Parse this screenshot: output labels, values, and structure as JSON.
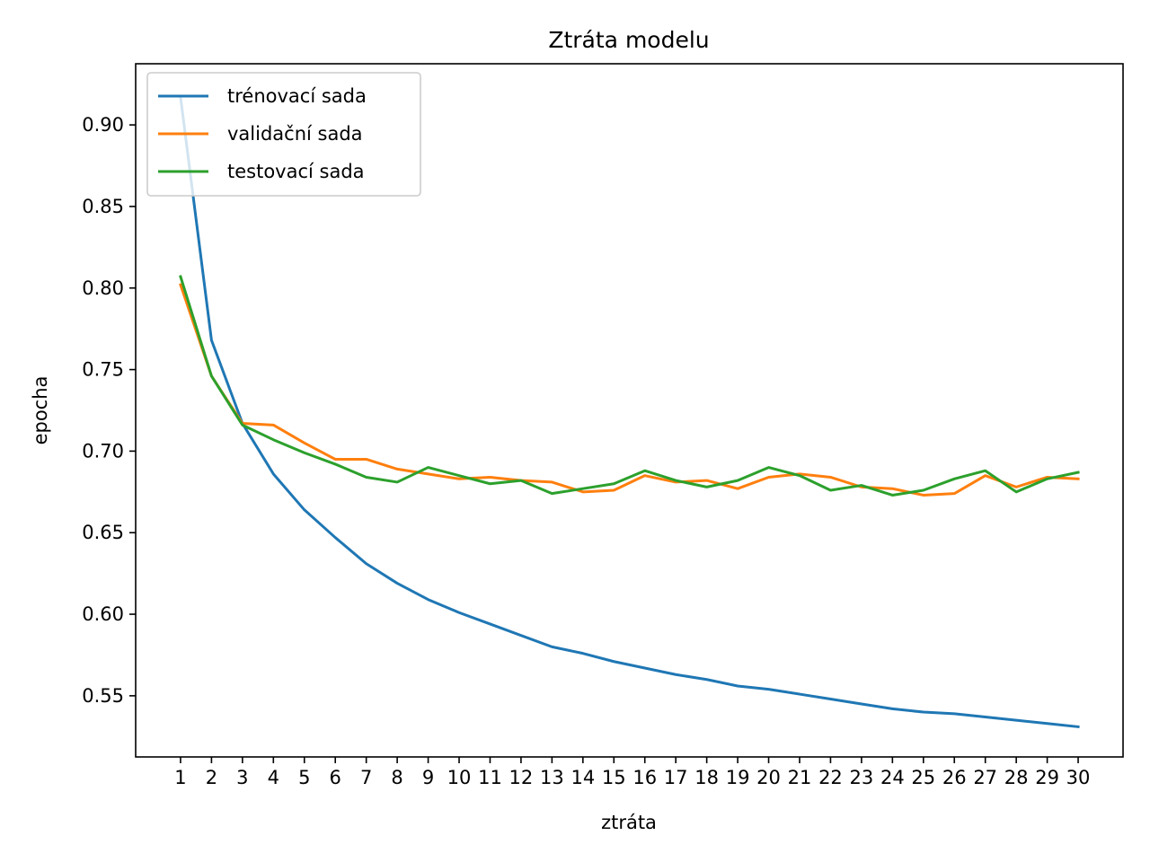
{
  "chart_data": {
    "type": "line",
    "title": "Ztráta modelu",
    "xlabel": "ztráta",
    "ylabel": "epocha",
    "x": [
      1,
      2,
      3,
      4,
      5,
      6,
      7,
      8,
      9,
      10,
      11,
      12,
      13,
      14,
      15,
      16,
      17,
      18,
      19,
      20,
      21,
      22,
      23,
      24,
      25,
      26,
      27,
      28,
      29,
      30
    ],
    "xtick_labels": [
      "1",
      "2",
      "3",
      "4",
      "5",
      "6",
      "7",
      "8",
      "9",
      "10",
      "11",
      "12",
      "13",
      "14",
      "15",
      "16",
      "17",
      "18",
      "19",
      "20",
      "21",
      "22",
      "23",
      "24",
      "25",
      "26",
      "27",
      "28",
      "29",
      "30"
    ],
    "yticks": [
      0.55,
      0.6,
      0.65,
      0.7,
      0.75,
      0.8,
      0.85,
      0.9
    ],
    "ytick_labels": [
      "0.55",
      "0.60",
      "0.65",
      "0.70",
      "0.75",
      "0.80",
      "0.85",
      "0.90"
    ],
    "xlim": [
      -0.45,
      31.45
    ],
    "ylim": [
      0.5125,
      0.9375
    ],
    "grid": false,
    "legend_position": "top-left",
    "series": [
      {
        "name": "trénovací sada",
        "color": "#1f77b4",
        "values": [
          0.917,
          0.768,
          0.717,
          0.686,
          0.664,
          0.647,
          0.631,
          0.619,
          0.609,
          0.601,
          0.594,
          0.587,
          0.58,
          0.576,
          0.571,
          0.567,
          0.563,
          0.56,
          0.556,
          0.554,
          0.551,
          0.548,
          0.545,
          0.542,
          0.54,
          0.539,
          0.537,
          0.535,
          0.533,
          0.531
        ]
      },
      {
        "name": "validační sada",
        "color": "#ff7f0e",
        "values": [
          0.802,
          0.746,
          0.717,
          0.716,
          0.705,
          0.695,
          0.695,
          0.689,
          0.686,
          0.683,
          0.684,
          0.682,
          0.681,
          0.675,
          0.676,
          0.685,
          0.681,
          0.682,
          0.677,
          0.684,
          0.686,
          0.684,
          0.678,
          0.677,
          0.673,
          0.674,
          0.685,
          0.678,
          0.684,
          0.683
        ]
      },
      {
        "name": "testovací sada",
        "color": "#2ca02c",
        "values": [
          0.807,
          0.746,
          0.716,
          0.707,
          0.699,
          0.692,
          0.684,
          0.681,
          0.69,
          0.685,
          0.68,
          0.682,
          0.674,
          0.677,
          0.68,
          0.688,
          0.682,
          0.678,
          0.682,
          0.69,
          0.685,
          0.676,
          0.679,
          0.673,
          0.676,
          0.683,
          0.688,
          0.675,
          0.683,
          0.687
        ]
      }
    ]
  }
}
